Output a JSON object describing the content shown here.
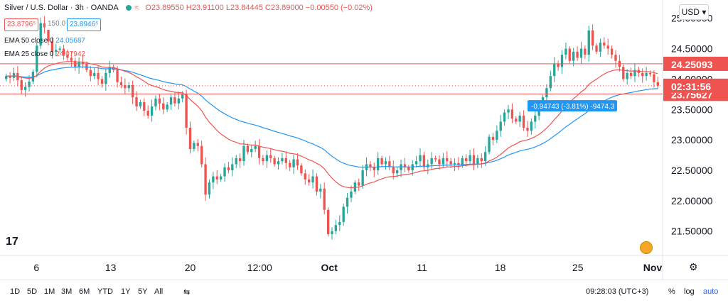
{
  "header": {
    "symbol": "Silver / U.S. Dollar · 3h · OANDA",
    "ohlc_text": "O23.89550 H23.91100 L23.84445 C23.89000 −0.00550 (−0.02%)",
    "bid": "23.8796⁵",
    "spread": "150.0",
    "ask": "23.8946⁵"
  },
  "indicators": [
    {
      "label": "EMA 50 close 0",
      "value": "24.05687",
      "color": "#2196f3"
    },
    {
      "label": "EMA 25 close 0",
      "value": "24.07942",
      "color": "#ef5350"
    }
  ],
  "toolbar": {
    "currency": "USD",
    "timeframes": [
      "1D",
      "5D",
      "1M",
      "3M",
      "6M",
      "YTD",
      "1Y",
      "5Y",
      "All"
    ],
    "clock": "09:28:03 (UTC+3)",
    "percent": "%",
    "log": "log",
    "auto": "auto"
  },
  "price_tags": {
    "upper_line": "24.25093",
    "countdown": "02:31:56",
    "lower_line": "23.75627",
    "measure": "-0.94743 (-3.81%) -9474.3"
  },
  "colors": {
    "up": "#26a69a",
    "down": "#ef5350",
    "ema50": "#2196f3",
    "ema25": "#ef5350",
    "line": "#ef5350"
  },
  "chart_data": {
    "type": "candlestick",
    "y_ticks": [
      "25.00000",
      "24.50000",
      "24.00000",
      "23.50000",
      "23.00000",
      "22.50000",
      "22.00000",
      "21.50000"
    ],
    "y_tick_values": [
      25.0,
      24.5,
      24.0,
      23.5,
      23.0,
      22.5,
      22.0,
      21.5
    ],
    "ylim": [
      21.1,
      25.3
    ],
    "x_ticks": [
      "6",
      "13",
      "20",
      "12:00",
      "Oct",
      "11",
      "18",
      "25",
      "Nov"
    ],
    "x_tick_pos": [
      0.055,
      0.167,
      0.287,
      0.392,
      0.497,
      0.637,
      0.755,
      0.872,
      0.985
    ],
    "horizontal_lines": [
      24.25093,
      23.75627
    ],
    "current_price": 23.89,
    "closes": [
      24.05,
      24.02,
      24.1,
      23.98,
      23.82,
      23.87,
      23.96,
      24.12,
      24.55,
      24.92,
      24.85,
      24.62,
      24.45,
      24.48,
      24.5,
      24.4,
      24.35,
      24.3,
      24.2,
      24.28,
      24.25,
      24.15,
      24.05,
      24.1,
      24.0,
      23.92,
      24.1,
      24.2,
      24.15,
      23.95,
      23.9,
      23.85,
      23.9,
      23.7,
      23.55,
      23.62,
      23.48,
      23.4,
      23.55,
      23.68,
      23.6,
      23.5,
      23.58,
      23.7,
      23.6,
      23.68,
      23.75,
      23.2,
      22.85,
      22.95,
      22.9,
      22.6,
      22.1,
      22.3,
      22.4,
      22.35,
      22.4,
      22.55,
      22.5,
      22.6,
      22.7,
      22.65,
      22.9,
      22.8,
      22.85,
      22.9,
      22.7,
      22.65,
      22.75,
      22.7,
      22.6,
      22.65,
      22.7,
      22.62,
      22.55,
      22.68,
      22.58,
      22.45,
      22.35,
      22.3,
      22.4,
      22.15,
      22.2,
      21.85,
      21.45,
      21.5,
      21.6,
      21.65,
      21.9,
      22.05,
      22.15,
      22.3,
      22.25,
      22.5,
      22.6,
      22.55,
      22.5,
      22.7,
      22.6,
      22.65,
      22.55,
      22.45,
      22.5,
      22.6,
      22.55,
      22.5,
      22.6,
      22.65,
      22.75,
      22.55,
      22.6,
      22.7,
      22.68,
      22.6,
      22.7,
      22.65,
      22.6,
      22.62,
      22.58,
      22.7,
      22.65,
      22.75,
      22.6,
      22.7,
      22.65,
      22.8,
      23.05,
      23.0,
      23.15,
      23.3,
      23.45,
      23.5,
      23.35,
      23.3,
      23.4,
      23.2,
      23.15,
      23.3,
      23.4,
      23.55,
      23.7,
      23.85,
      24.05,
      24.25,
      24.2,
      24.4,
      24.5,
      24.3,
      24.45,
      24.35,
      24.5,
      24.4,
      24.8,
      24.55,
      24.45,
      24.6,
      24.55,
      24.5,
      24.4,
      24.3,
      24.2,
      24.0,
      24.1,
      24.05,
      24.15,
      24.1,
      24.05,
      24.1,
      24.08,
      23.95,
      23.89
    ]
  }
}
